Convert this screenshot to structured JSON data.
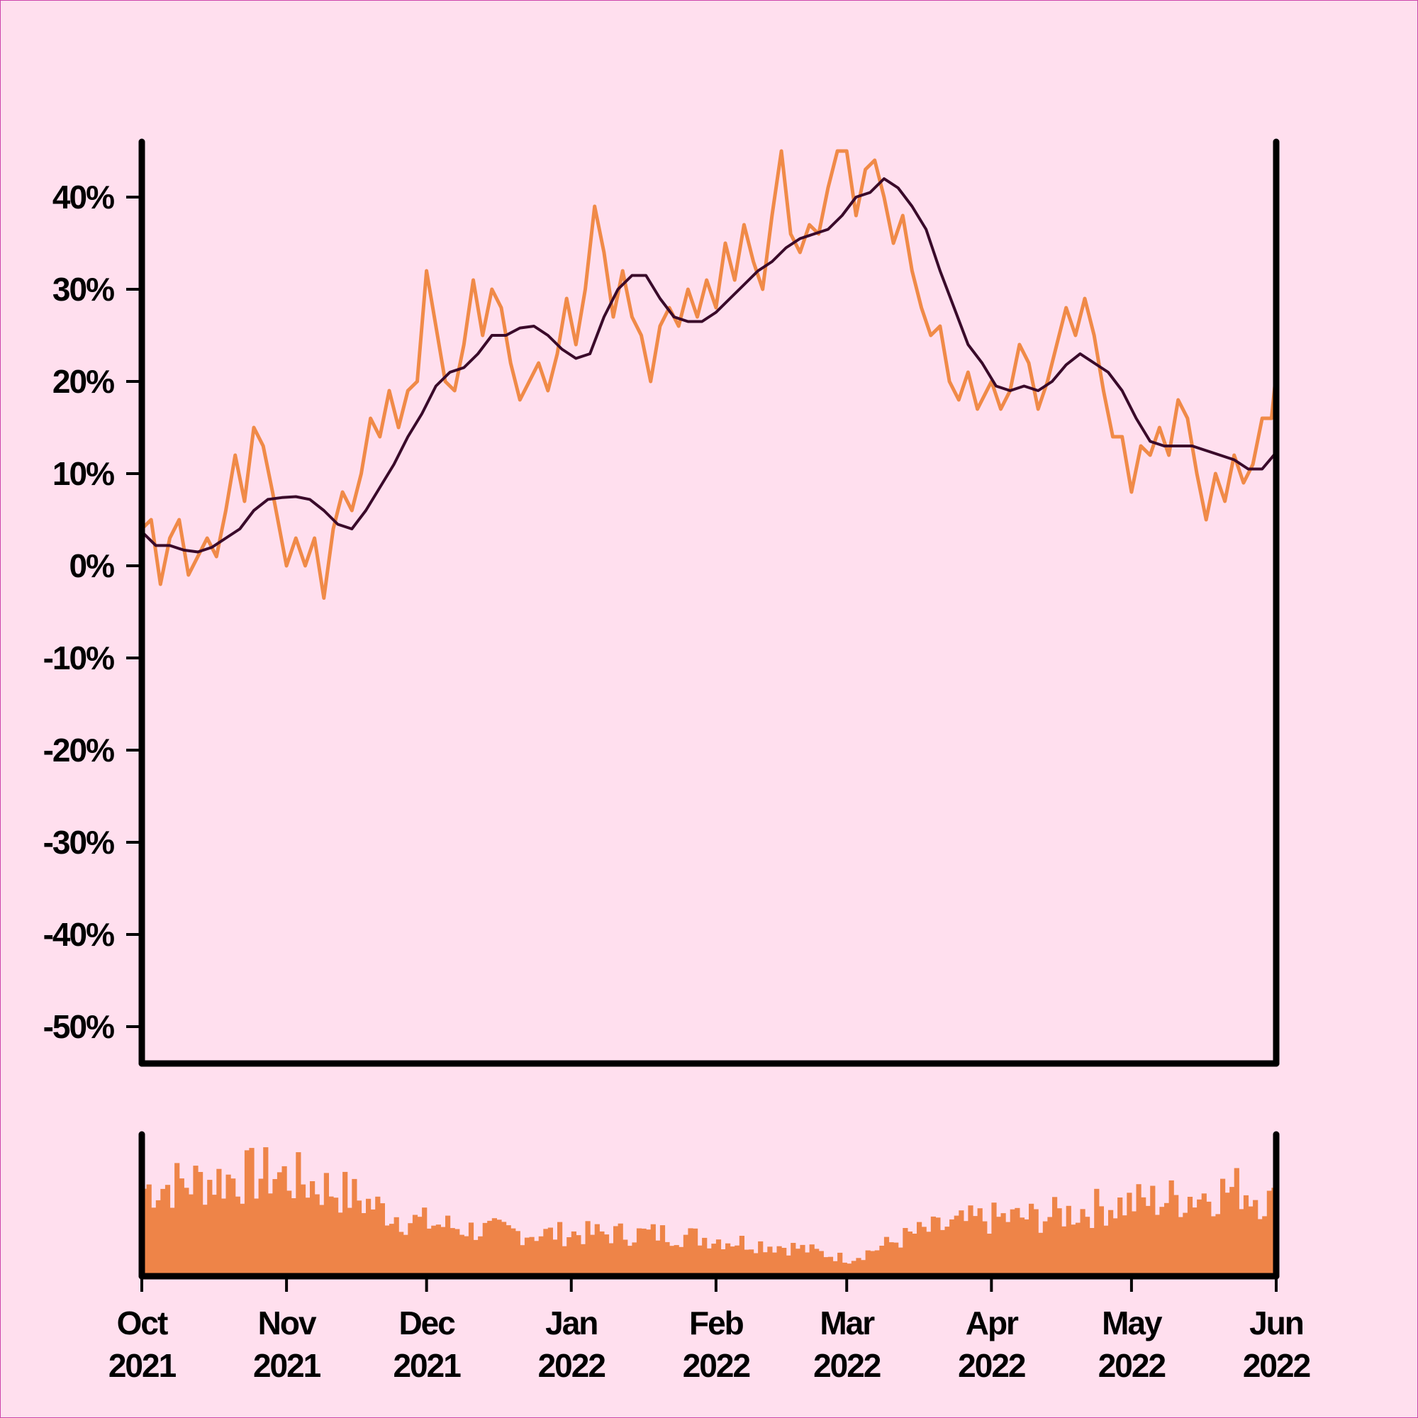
{
  "chart_data": {
    "type": "line",
    "title": "",
    "xlabel": "",
    "ylabel": "",
    "x_range": [
      "2021-10-01",
      "2022-06-01"
    ],
    "ylim": [
      -0.54,
      0.46
    ],
    "y_ticks": [
      {
        "value": 0.4,
        "label": "40%"
      },
      {
        "value": 0.3,
        "label": "30%"
      },
      {
        "value": 0.2,
        "label": "20%"
      },
      {
        "value": 0.1,
        "label": "10%"
      },
      {
        "value": 0.0,
        "label": "0%"
      },
      {
        "value": -0.1,
        "label": "-10%"
      },
      {
        "value": -0.2,
        "label": "-20%"
      },
      {
        "value": -0.3,
        "label": "-30%"
      },
      {
        "value": -0.4,
        "label": "-40%"
      },
      {
        "value": -0.5,
        "label": "-50%"
      }
    ],
    "x_ticks": [
      {
        "date": "2021-10-01",
        "month": "Oct",
        "year": "2021"
      },
      {
        "date": "2021-11-01",
        "month": "Nov",
        "year": "2021"
      },
      {
        "date": "2021-12-01",
        "month": "Dec",
        "year": "2021"
      },
      {
        "date": "2022-01-01",
        "month": "Jan",
        "year": "2022"
      },
      {
        "date": "2022-02-01",
        "month": "Feb",
        "year": "2022"
      },
      {
        "date": "2022-03-01",
        "month": "Mar",
        "year": "2022"
      },
      {
        "date": "2022-04-01",
        "month": "Apr",
        "year": "2022"
      },
      {
        "date": "2022-05-01",
        "month": "May",
        "year": "2022"
      },
      {
        "date": "2022-06-01",
        "month": "Jun",
        "year": "2022"
      }
    ],
    "grid": false,
    "legend": "none",
    "colors": {
      "daily": "#f08a48",
      "average": "#3a0a2a",
      "volume": "#ee8448",
      "axis": "#000000",
      "background": "#ffdfee"
    },
    "series": [
      {
        "style": "line",
        "color": "#f08a48",
        "points": [
          [
            "2021-10-01",
            0.04
          ],
          [
            "2021-10-03",
            0.05
          ],
          [
            "2021-10-05",
            -0.02
          ],
          [
            "2021-10-07",
            0.03
          ],
          [
            "2021-10-09",
            0.05
          ],
          [
            "2021-10-11",
            -0.01
          ],
          [
            "2021-10-13",
            0.01
          ],
          [
            "2021-10-15",
            0.03
          ],
          [
            "2021-10-17",
            0.01
          ],
          [
            "2021-10-19",
            0.06
          ],
          [
            "2021-10-21",
            0.12
          ],
          [
            "2021-10-23",
            0.07
          ],
          [
            "2021-10-25",
            0.15
          ],
          [
            "2021-10-27",
            0.13
          ],
          [
            "2021-10-29",
            0.08
          ],
          [
            "2021-11-01",
            0.0
          ],
          [
            "2021-11-03",
            0.03
          ],
          [
            "2021-11-05",
            0.0
          ],
          [
            "2021-11-07",
            0.03
          ],
          [
            "2021-11-09",
            -0.035
          ],
          [
            "2021-11-11",
            0.04
          ],
          [
            "2021-11-13",
            0.08
          ],
          [
            "2021-11-15",
            0.06
          ],
          [
            "2021-11-17",
            0.1
          ],
          [
            "2021-11-19",
            0.16
          ],
          [
            "2021-11-21",
            0.14
          ],
          [
            "2021-11-23",
            0.19
          ],
          [
            "2021-11-25",
            0.15
          ],
          [
            "2021-11-27",
            0.19
          ],
          [
            "2021-11-29",
            0.2
          ],
          [
            "2021-12-01",
            0.32
          ],
          [
            "2021-12-03",
            0.26
          ],
          [
            "2021-12-05",
            0.2
          ],
          [
            "2021-12-07",
            0.19
          ],
          [
            "2021-12-09",
            0.24
          ],
          [
            "2021-12-11",
            0.31
          ],
          [
            "2021-12-13",
            0.25
          ],
          [
            "2021-12-15",
            0.3
          ],
          [
            "2021-12-17",
            0.28
          ],
          [
            "2021-12-19",
            0.22
          ],
          [
            "2021-12-21",
            0.18
          ],
          [
            "2021-12-23",
            0.2
          ],
          [
            "2021-12-25",
            0.22
          ],
          [
            "2021-12-27",
            0.19
          ],
          [
            "2021-12-29",
            0.23
          ],
          [
            "2021-12-31",
            0.29
          ],
          [
            "2022-01-02",
            0.24
          ],
          [
            "2022-01-04",
            0.3
          ],
          [
            "2022-01-06",
            0.39
          ],
          [
            "2022-01-08",
            0.34
          ],
          [
            "2022-01-10",
            0.27
          ],
          [
            "2022-01-12",
            0.32
          ],
          [
            "2022-01-14",
            0.27
          ],
          [
            "2022-01-16",
            0.25
          ],
          [
            "2022-01-18",
            0.2
          ],
          [
            "2022-01-20",
            0.26
          ],
          [
            "2022-01-22",
            0.28
          ],
          [
            "2022-01-24",
            0.26
          ],
          [
            "2022-01-26",
            0.3
          ],
          [
            "2022-01-28",
            0.27
          ],
          [
            "2022-01-30",
            0.31
          ],
          [
            "2022-02-01",
            0.28
          ],
          [
            "2022-02-03",
            0.35
          ],
          [
            "2022-02-05",
            0.31
          ],
          [
            "2022-02-07",
            0.37
          ],
          [
            "2022-02-09",
            0.33
          ],
          [
            "2022-02-11",
            0.3
          ],
          [
            "2022-02-13",
            0.38
          ],
          [
            "2022-02-15",
            0.45
          ],
          [
            "2022-02-17",
            0.36
          ],
          [
            "2022-02-19",
            0.34
          ],
          [
            "2022-02-21",
            0.37
          ],
          [
            "2022-02-23",
            0.36
          ],
          [
            "2022-02-25",
            0.41
          ],
          [
            "2022-02-27",
            0.45
          ],
          [
            "2022-03-01",
            0.45
          ],
          [
            "2022-03-03",
            0.38
          ],
          [
            "2022-03-05",
            0.43
          ],
          [
            "2022-03-07",
            0.44
          ],
          [
            "2022-03-09",
            0.4
          ],
          [
            "2022-03-11",
            0.35
          ],
          [
            "2022-03-13",
            0.38
          ],
          [
            "2022-03-15",
            0.32
          ],
          [
            "2022-03-17",
            0.28
          ],
          [
            "2022-03-19",
            0.25
          ],
          [
            "2022-03-21",
            0.26
          ],
          [
            "2022-03-23",
            0.2
          ],
          [
            "2022-03-25",
            0.18
          ],
          [
            "2022-03-27",
            0.21
          ],
          [
            "2022-03-29",
            0.17
          ],
          [
            "2022-04-01",
            0.2
          ],
          [
            "2022-04-03",
            0.17
          ],
          [
            "2022-04-05",
            0.19
          ],
          [
            "2022-04-07",
            0.24
          ],
          [
            "2022-04-09",
            0.22
          ],
          [
            "2022-04-11",
            0.17
          ],
          [
            "2022-04-13",
            0.2
          ],
          [
            "2022-04-15",
            0.24
          ],
          [
            "2022-04-17",
            0.28
          ],
          [
            "2022-04-19",
            0.25
          ],
          [
            "2022-04-21",
            0.29
          ],
          [
            "2022-04-23",
            0.25
          ],
          [
            "2022-04-25",
            0.19
          ],
          [
            "2022-04-27",
            0.14
          ],
          [
            "2022-04-29",
            0.14
          ],
          [
            "2022-05-01",
            0.08
          ],
          [
            "2022-05-03",
            0.13
          ],
          [
            "2022-05-05",
            0.12
          ],
          [
            "2022-05-07",
            0.15
          ],
          [
            "2022-05-09",
            0.12
          ],
          [
            "2022-05-11",
            0.18
          ],
          [
            "2022-05-13",
            0.16
          ],
          [
            "2022-05-15",
            0.1
          ],
          [
            "2022-05-17",
            0.05
          ],
          [
            "2022-05-19",
            0.1
          ],
          [
            "2022-05-21",
            0.07
          ],
          [
            "2022-05-23",
            0.12
          ],
          [
            "2022-05-25",
            0.09
          ],
          [
            "2022-05-27",
            0.11
          ],
          [
            "2022-05-29",
            0.16
          ],
          [
            "2022-05-31",
            0.16
          ],
          [
            "2022-06-01",
            0.21
          ]
        ]
      },
      {
        "style": "line",
        "color": "#3a0a2a",
        "points": [
          [
            "2021-10-01",
            0.037
          ],
          [
            "2021-10-04",
            0.022
          ],
          [
            "2021-10-07",
            0.022
          ],
          [
            "2021-10-10",
            0.017
          ],
          [
            "2021-10-13",
            0.015
          ],
          [
            "2021-10-16",
            0.02
          ],
          [
            "2021-10-19",
            0.03
          ],
          [
            "2021-10-22",
            0.04
          ],
          [
            "2021-10-25",
            0.06
          ],
          [
            "2021-10-28",
            0.072
          ],
          [
            "2021-10-31",
            0.074
          ],
          [
            "2021-11-03",
            0.075
          ],
          [
            "2021-11-06",
            0.072
          ],
          [
            "2021-11-09",
            0.06
          ],
          [
            "2021-11-12",
            0.045
          ],
          [
            "2021-11-15",
            0.04
          ],
          [
            "2021-11-18",
            0.06
          ],
          [
            "2021-11-21",
            0.085
          ],
          [
            "2021-11-24",
            0.11
          ],
          [
            "2021-11-27",
            0.14
          ],
          [
            "2021-11-30",
            0.165
          ],
          [
            "2021-12-03",
            0.195
          ],
          [
            "2021-12-06",
            0.21
          ],
          [
            "2021-12-09",
            0.215
          ],
          [
            "2021-12-12",
            0.23
          ],
          [
            "2021-12-15",
            0.25
          ],
          [
            "2021-12-18",
            0.25
          ],
          [
            "2021-12-21",
            0.258
          ],
          [
            "2021-12-24",
            0.26
          ],
          [
            "2021-12-27",
            0.25
          ],
          [
            "2021-12-30",
            0.235
          ],
          [
            "2022-01-02",
            0.225
          ],
          [
            "2022-01-05",
            0.23
          ],
          [
            "2022-01-08",
            0.27
          ],
          [
            "2022-01-11",
            0.3
          ],
          [
            "2022-01-14",
            0.315
          ],
          [
            "2022-01-17",
            0.315
          ],
          [
            "2022-01-20",
            0.29
          ],
          [
            "2022-01-23",
            0.27
          ],
          [
            "2022-01-26",
            0.265
          ],
          [
            "2022-01-29",
            0.265
          ],
          [
            "2022-02-01",
            0.275
          ],
          [
            "2022-02-04",
            0.29
          ],
          [
            "2022-02-07",
            0.305
          ],
          [
            "2022-02-10",
            0.32
          ],
          [
            "2022-02-13",
            0.33
          ],
          [
            "2022-02-16",
            0.345
          ],
          [
            "2022-02-19",
            0.355
          ],
          [
            "2022-02-22",
            0.36
          ],
          [
            "2022-02-25",
            0.365
          ],
          [
            "2022-02-28",
            0.38
          ],
          [
            "2022-03-03",
            0.4
          ],
          [
            "2022-03-06",
            0.405
          ],
          [
            "2022-03-09",
            0.42
          ],
          [
            "2022-03-12",
            0.41
          ],
          [
            "2022-03-15",
            0.39
          ],
          [
            "2022-03-18",
            0.365
          ],
          [
            "2022-03-21",
            0.32
          ],
          [
            "2022-03-24",
            0.28
          ],
          [
            "2022-03-27",
            0.24
          ],
          [
            "2022-03-30",
            0.22
          ],
          [
            "2022-04-02",
            0.195
          ],
          [
            "2022-04-05",
            0.19
          ],
          [
            "2022-04-08",
            0.195
          ],
          [
            "2022-04-11",
            0.19
          ],
          [
            "2022-04-14",
            0.2
          ],
          [
            "2022-04-17",
            0.218
          ],
          [
            "2022-04-20",
            0.23
          ],
          [
            "2022-04-23",
            0.22
          ],
          [
            "2022-04-26",
            0.21
          ],
          [
            "2022-04-29",
            0.19
          ],
          [
            "2022-05-02",
            0.16
          ],
          [
            "2022-05-05",
            0.135
          ],
          [
            "2022-05-08",
            0.13
          ],
          [
            "2022-05-11",
            0.13
          ],
          [
            "2022-05-14",
            0.13
          ],
          [
            "2022-05-17",
            0.125
          ],
          [
            "2022-05-20",
            0.12
          ],
          [
            "2022-05-23",
            0.115
          ],
          [
            "2022-05-26",
            0.105
          ],
          [
            "2022-05-29",
            0.105
          ],
          [
            "2022-06-01",
            0.123
          ]
        ]
      },
      {
        "style": "bar",
        "color": "#ee8448",
        "panel": "lower",
        "ylim": [
          0,
          1
        ],
        "profile": [
          [
            "2021-10-01",
            0.62
          ],
          [
            "2021-10-15",
            0.68
          ],
          [
            "2021-10-29",
            0.72
          ],
          [
            "2021-11-12",
            0.6
          ],
          [
            "2021-11-26",
            0.4
          ],
          [
            "2021-12-10",
            0.33
          ],
          [
            "2021-12-24",
            0.3
          ],
          [
            "2022-01-07",
            0.3
          ],
          [
            "2022-01-21",
            0.3
          ],
          [
            "2022-02-04",
            0.25
          ],
          [
            "2022-02-18",
            0.2
          ],
          [
            "2022-03-01",
            0.12
          ],
          [
            "2022-03-15",
            0.3
          ],
          [
            "2022-03-29",
            0.4
          ],
          [
            "2022-04-12",
            0.42
          ],
          [
            "2022-04-26",
            0.5
          ],
          [
            "2022-05-10",
            0.55
          ],
          [
            "2022-05-24",
            0.62
          ],
          [
            "2022-06-01",
            0.5
          ]
        ]
      }
    ]
  }
}
